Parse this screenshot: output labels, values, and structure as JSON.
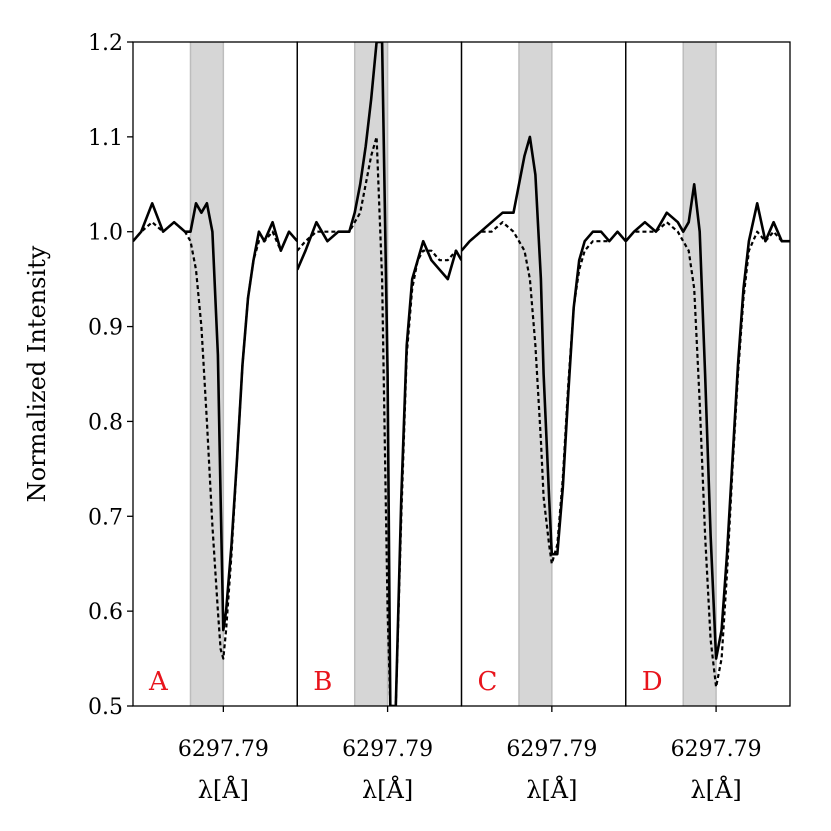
{
  "chart_data": {
    "type": "line",
    "ylabel": "Normalized Intensity",
    "ylim": [
      0.5,
      1.2
    ],
    "yticks": [
      "0.5",
      "0.6",
      "0.7",
      "0.8",
      "0.9",
      "1.0",
      "1.1",
      "1.2"
    ],
    "xlim": [
      6297.757,
      6297.817
    ],
    "xtick_value": 6297.79,
    "xtick_label": "6297.79",
    "xlabel": "λ[Å]",
    "shade": [
      6297.778,
      6297.79
    ],
    "label_color": "#e8141c",
    "line_color": "#000000",
    "shade_color": "#d6d6d6",
    "panels": [
      {
        "label": "A",
        "series": [
          {
            "style": "solid",
            "x": [
              6297.757,
              6297.76,
              6297.764,
              6297.768,
              6297.772,
              6297.776,
              6297.778,
              6297.78,
              6297.782,
              6297.784,
              6297.786,
              6297.788,
              6297.789,
              6297.79,
              6297.791,
              6297.793,
              6297.795,
              6297.797,
              6297.799,
              6297.801,
              6297.803,
              6297.805,
              6297.808,
              6297.811,
              6297.814,
              6297.817
            ],
            "y": [
              0.99,
              1.0,
              1.03,
              1.0,
              1.01,
              1.0,
              1.0,
              1.03,
              1.02,
              1.03,
              1.0,
              0.87,
              0.72,
              0.58,
              0.6,
              0.67,
              0.76,
              0.86,
              0.93,
              0.97,
              1.0,
              0.99,
              1.01,
              0.98,
              1.0,
              0.99
            ]
          },
          {
            "style": "dashed",
            "x": [
              6297.757,
              6297.76,
              6297.764,
              6297.768,
              6297.772,
              6297.776,
              6297.778,
              6297.78,
              6297.782,
              6297.784,
              6297.786,
              6297.788,
              6297.789,
              6297.79,
              6297.791,
              6297.793,
              6297.795,
              6297.797,
              6297.799,
              6297.801,
              6297.803,
              6297.805,
              6297.808,
              6297.811,
              6297.814,
              6297.817
            ],
            "y": [
              0.99,
              1.0,
              1.01,
              1.0,
              1.01,
              1.0,
              0.99,
              0.96,
              0.9,
              0.8,
              0.69,
              0.6,
              0.56,
              0.55,
              0.58,
              0.66,
              0.76,
              0.86,
              0.93,
              0.97,
              0.99,
              0.99,
              1.0,
              0.98,
              1.0,
              0.99
            ]
          }
        ]
      },
      {
        "label": "B",
        "series": [
          {
            "style": "solid",
            "x": [
              6297.757,
              6297.76,
              6297.764,
              6297.768,
              6297.772,
              6297.776,
              6297.778,
              6297.78,
              6297.782,
              6297.784,
              6297.786,
              6297.788,
              6297.79,
              6297.791,
              6297.793,
              6297.795,
              6297.797,
              6297.799,
              6297.801,
              6297.803,
              6297.806,
              6297.809,
              6297.812,
              6297.815,
              6297.817
            ],
            "y": [
              0.96,
              0.98,
              1.01,
              0.99,
              1.0,
              1.0,
              1.02,
              1.05,
              1.09,
              1.14,
              1.2,
              1.2,
              0.85,
              0.5,
              0.5,
              0.72,
              0.88,
              0.95,
              0.97,
              0.99,
              0.97,
              0.96,
              0.95,
              0.98,
              0.97
            ]
          },
          {
            "style": "dashed",
            "x": [
              6297.757,
              6297.76,
              6297.764,
              6297.768,
              6297.772,
              6297.776,
              6297.778,
              6297.78,
              6297.782,
              6297.784,
              6297.786,
              6297.788,
              6297.79,
              6297.791,
              6297.793,
              6297.795,
              6297.797,
              6297.799,
              6297.801,
              6297.803,
              6297.806,
              6297.809,
              6297.812,
              6297.815,
              6297.817
            ],
            "y": [
              0.98,
              0.99,
              1.0,
              1.0,
              1.0,
              1.0,
              1.01,
              1.02,
              1.05,
              1.08,
              1.1,
              0.95,
              0.6,
              0.5,
              0.5,
              0.7,
              0.87,
              0.94,
              0.97,
              0.98,
              0.98,
              0.97,
              0.97,
              0.98,
              0.97
            ]
          }
        ]
      },
      {
        "label": "C",
        "series": [
          {
            "style": "solid",
            "x": [
              6297.757,
              6297.76,
              6297.764,
              6297.768,
              6297.772,
              6297.776,
              6297.778,
              6297.78,
              6297.782,
              6297.784,
              6297.786,
              6297.787,
              6297.789,
              6297.79,
              6297.792,
              6297.794,
              6297.796,
              6297.798,
              6297.8,
              6297.802,
              6297.805,
              6297.808,
              6297.811,
              6297.814,
              6297.817
            ],
            "y": [
              0.98,
              0.99,
              1.0,
              1.01,
              1.02,
              1.02,
              1.05,
              1.08,
              1.1,
              1.06,
              0.95,
              0.85,
              0.72,
              0.66,
              0.66,
              0.73,
              0.83,
              0.92,
              0.97,
              0.99,
              1.0,
              1.0,
              0.99,
              1.0,
              0.99
            ]
          },
          {
            "style": "dashed",
            "x": [
              6297.757,
              6297.76,
              6297.764,
              6297.768,
              6297.772,
              6297.776,
              6297.778,
              6297.78,
              6297.782,
              6297.784,
              6297.786,
              6297.787,
              6297.789,
              6297.79,
              6297.792,
              6297.794,
              6297.796,
              6297.798,
              6297.8,
              6297.802,
              6297.805,
              6297.808,
              6297.811,
              6297.814,
              6297.817
            ],
            "y": [
              0.98,
              0.99,
              1.0,
              1.0,
              1.01,
              1.0,
              0.99,
              0.98,
              0.95,
              0.88,
              0.78,
              0.72,
              0.67,
              0.65,
              0.67,
              0.74,
              0.84,
              0.92,
              0.96,
              0.98,
              0.99,
              0.99,
              0.99,
              1.0,
              0.99
            ]
          }
        ]
      },
      {
        "label": "D",
        "series": [
          {
            "style": "solid",
            "x": [
              6297.757,
              6297.76,
              6297.764,
              6297.768,
              6297.772,
              6297.776,
              6297.778,
              6297.78,
              6297.782,
              6297.784,
              6297.786,
              6297.788,
              6297.79,
              6297.792,
              6297.794,
              6297.796,
              6297.798,
              6297.8,
              6297.802,
              6297.805,
              6297.808,
              6297.811,
              6297.814,
              6297.817
            ],
            "y": [
              0.99,
              1.0,
              1.01,
              1.0,
              1.02,
              1.01,
              1.0,
              1.01,
              1.05,
              1.0,
              0.85,
              0.68,
              0.55,
              0.58,
              0.66,
              0.76,
              0.86,
              0.94,
              0.99,
              1.03,
              0.99,
              1.01,
              0.99,
              0.99
            ]
          },
          {
            "style": "dashed",
            "x": [
              6297.757,
              6297.76,
              6297.764,
              6297.768,
              6297.772,
              6297.776,
              6297.778,
              6297.78,
              6297.782,
              6297.784,
              6297.786,
              6297.788,
              6297.79,
              6297.792,
              6297.794,
              6297.796,
              6297.798,
              6297.8,
              6297.802,
              6297.805,
              6297.808,
              6297.811,
              6297.814,
              6297.817
            ],
            "y": [
              0.99,
              1.0,
              1.0,
              1.0,
              1.01,
              1.0,
              0.99,
              0.98,
              0.94,
              0.82,
              0.68,
              0.57,
              0.52,
              0.55,
              0.64,
              0.75,
              0.85,
              0.93,
              0.98,
              1.0,
              0.99,
              1.0,
              0.99,
              0.99
            ]
          }
        ]
      }
    ]
  }
}
